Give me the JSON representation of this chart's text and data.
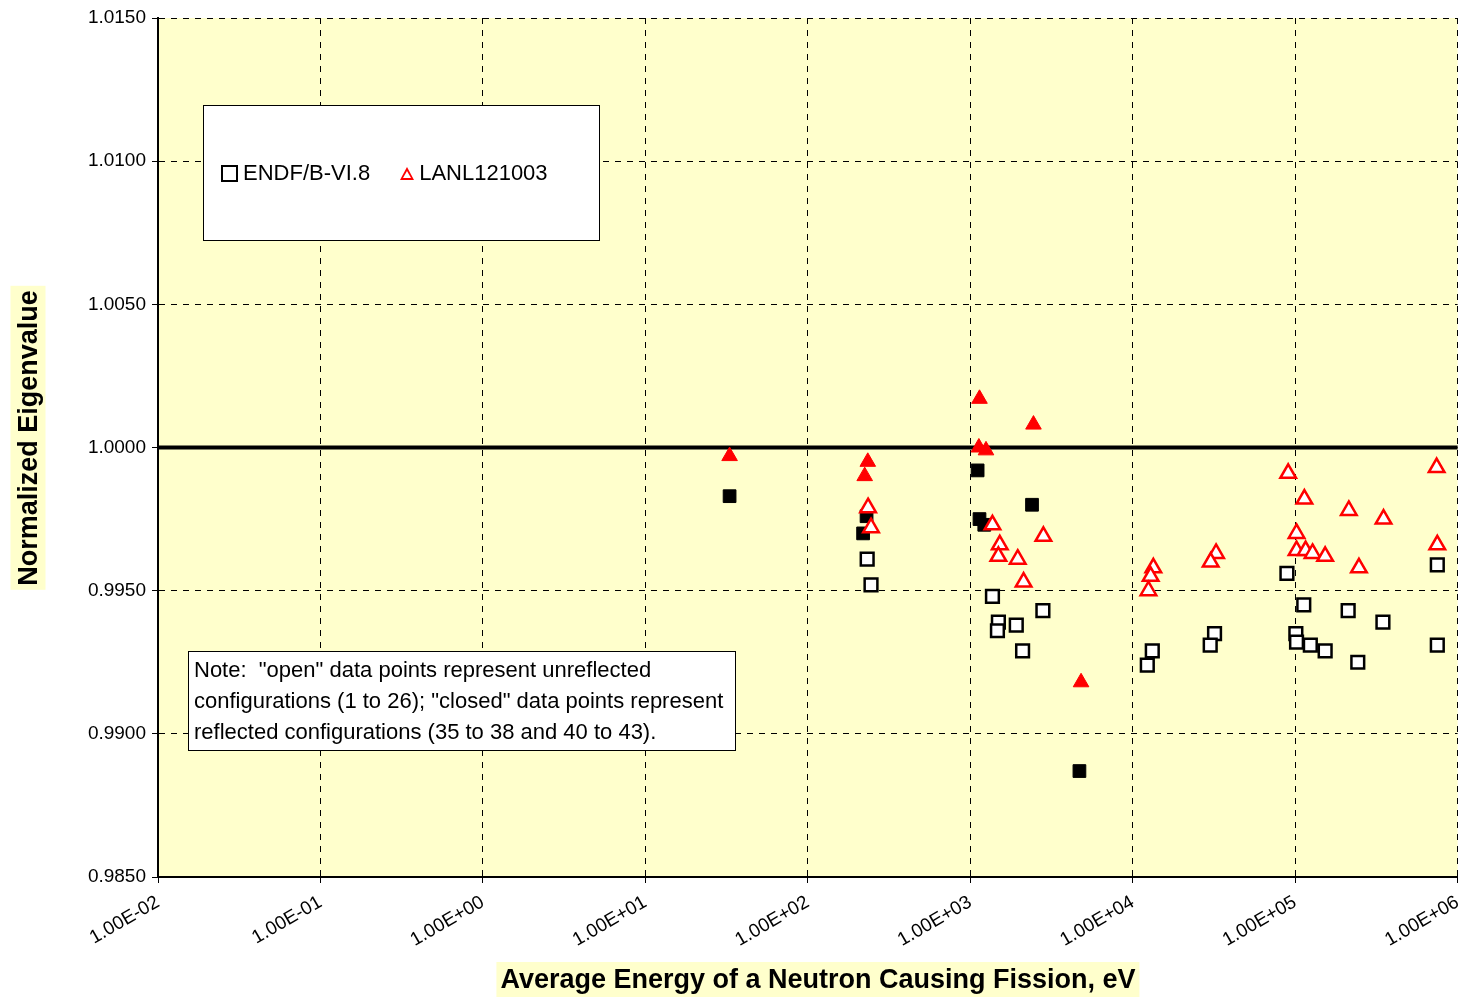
{
  "chart_data": {
    "type": "scatter",
    "xlabel": "Average Energy of a Neutron Causing Fission, eV",
    "ylabel": "Normalized Eigenvalue",
    "log": "x",
    "grid": true,
    "legend": "top left",
    "xlim": [
      0.01,
      1000000
    ],
    "xticks": [
      {
        "value": 0.01,
        "label": "1.00E-02"
      },
      {
        "value": 0.1,
        "label": "1.00E-01"
      },
      {
        "value": 1,
        "label": "1.00E+00"
      },
      {
        "value": 10,
        "label": "1.00E+01"
      },
      {
        "value": 100,
        "label": "1.00E+02"
      },
      {
        "value": 1000,
        "label": "1.00E+03"
      },
      {
        "value": 10000,
        "label": "1.00E+04"
      },
      {
        "value": 100000,
        "label": "1.00E+05"
      },
      {
        "value": 1000000,
        "label": "1.00E+06"
      }
    ],
    "ylim": [
      0.985,
      1.015
    ],
    "yticks": [
      {
        "value": 0.985,
        "label": "0.9850"
      },
      {
        "value": 0.99,
        "label": "0.9900"
      },
      {
        "value": 0.995,
        "label": "0.9950"
      },
      {
        "value": 1,
        "label": "1.0000"
      },
      {
        "value": 1.005,
        "label": "1.0050"
      },
      {
        "value": 1.01,
        "label": "1.0100"
      },
      {
        "value": 1.015,
        "label": "1.0150"
      }
    ],
    "ref_lines": [
      {
        "axis": "y",
        "value": 1,
        "color": "#000000",
        "line_style": "solid"
      }
    ],
    "annotations": [
      "Note:  \"open\" data points represent unreflected configurations (1 to 26); \"closed\" data points represent reflected configurations (35 to 38 and 40 to 43)."
    ],
    "series": [
      {
        "name": "ENDF/B-VI.8",
        "color": "#000000",
        "marker": "square",
        "x": [
          232,
          245,
          1370,
          1490,
          1470,
          1920,
          2800,
          2100,
          13200,
          12300,
          31900,
          30000,
          89000,
          113000,
          101000,
          102000,
          124000,
          153000,
          212000,
          347000,
          243000,
          750000,
          750000
        ],
        "values": [
          0.9961,
          0.9952,
          0.9948,
          0.9939,
          0.9936,
          0.9938,
          0.9943,
          0.9929,
          0.9929,
          0.9924,
          0.9935,
          0.9931,
          0.9956,
          0.9945,
          0.9935,
          0.9932,
          0.9931,
          0.9929,
          0.9943,
          0.9939,
          0.9925,
          0.9959,
          0.9931
        ]
      },
      {
        "name": "LANL121003",
        "color": "#ff0000",
        "marker": "triangle",
        "x": [
          235,
          245,
          1370,
          1520,
          1490,
          1960,
          2130,
          2820,
          13400,
          12900,
          12500,
          32600,
          30200,
          90600,
          114000,
          102000,
          102000,
          116000,
          128000,
          153000,
          214000,
          350000,
          247000,
          743000,
          750000
        ],
        "values": [
          0.9979,
          0.9972,
          0.9973,
          0.9966,
          0.9962,
          0.9961,
          0.9953,
          0.9969,
          0.9958,
          0.9955,
          0.995,
          0.9963,
          0.996,
          0.9991,
          0.9982,
          0.997,
          0.9964,
          0.9964,
          0.9963,
          0.9962,
          0.9978,
          0.9975,
          0.9958,
          0.9993,
          0.9966
        ]
      },
      {
        "color": "#000000",
        "marker": "square",
        "x": [
          33,
          230,
          219,
          1110,
          1140,
          1220,
          2400,
          4700
        ],
        "values": [
          0.9983,
          0.9976,
          0.997,
          0.9992,
          0.9975,
          0.9973,
          0.998,
          0.9887
        ]
      },
      {
        "color": "#ff0000",
        "marker": "triangle",
        "x": [
          33,
          234,
          224,
          1140,
          1130,
          1250,
          2450,
          4810
        ],
        "values": [
          0.9997,
          0.9995,
          0.999,
          1.0017,
          1,
          0.9999,
          1.0008,
          0.9918
        ]
      }
    ]
  }
}
